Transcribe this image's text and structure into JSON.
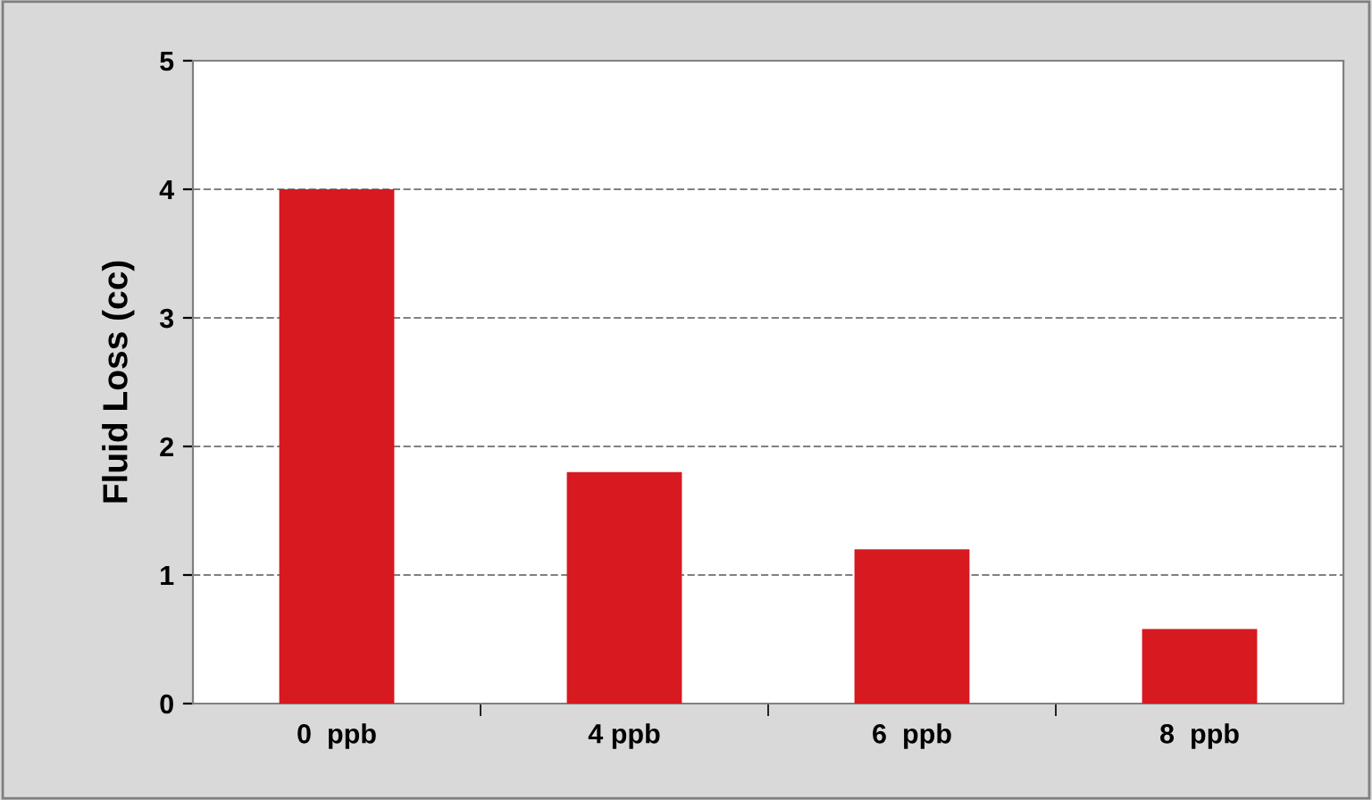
{
  "chart_data": {
    "type": "bar",
    "ylabel": "Fluid Loss (cc)",
    "categories": [
      "0  ppb",
      "4 ppb",
      "6  ppb",
      "8  ppb"
    ],
    "values": [
      4.0,
      1.8,
      1.2,
      0.58
    ],
    "color": "#d71920",
    "ylim": [
      0,
      5
    ],
    "yticks": [
      0,
      1,
      2,
      3,
      4,
      5
    ],
    "grid": "y"
  }
}
